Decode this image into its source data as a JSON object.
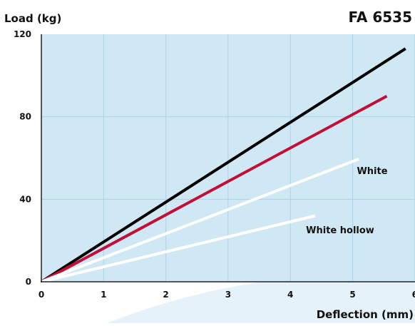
{
  "colors": {
    "plot_background": "#cfe8f3",
    "grid": "#a9d3ea",
    "watermark": "#e3f1f8"
  },
  "chart_data": {
    "type": "line",
    "title": "FA 6535",
    "xlabel": "Deflection (mm)",
    "ylabel": "Load (kg)",
    "xlim": [
      0,
      6
    ],
    "ylim": [
      0,
      120
    ],
    "x_ticks": [
      "0",
      "1",
      "2",
      "3",
      "4",
      "5",
      "6"
    ],
    "y_ticks": [
      "0",
      "40",
      "80",
      "120"
    ],
    "grid": true,
    "series": [
      {
        "name": "",
        "color": "#000000",
        "points": [
          [
            0,
            0
          ],
          [
            5.85,
            113
          ]
        ]
      },
      {
        "name": "",
        "color": "#c0103a",
        "points": [
          [
            0,
            0
          ],
          [
            5.55,
            90
          ]
        ]
      },
      {
        "name": "White",
        "color": "#ffffff",
        "points": [
          [
            0,
            0
          ],
          [
            5.1,
            59.5
          ]
        ]
      },
      {
        "name": "White hollow",
        "color": "#ffffff",
        "points": [
          [
            0,
            0
          ],
          [
            4.4,
            32
          ]
        ]
      }
    ]
  }
}
